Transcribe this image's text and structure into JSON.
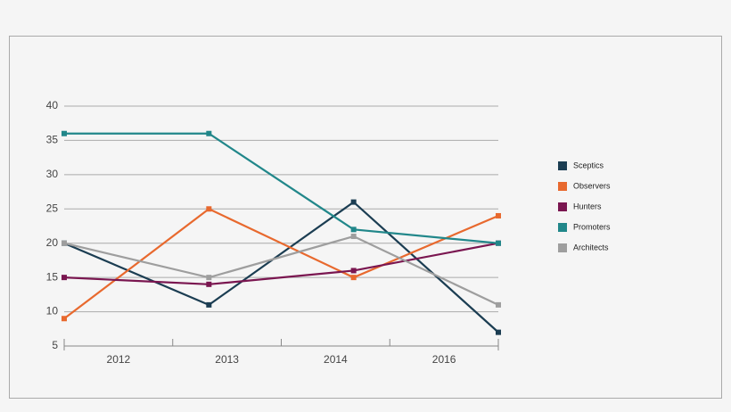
{
  "chart_data": {
    "type": "line",
    "categories": [
      "2012",
      "2013",
      "2014",
      "2016"
    ],
    "series": [
      {
        "name": "Sceptics",
        "color": "#1b3d52",
        "values": [
          20,
          11,
          26,
          7
        ]
      },
      {
        "name": "Observers",
        "color": "#e8692e",
        "values": [
          9,
          25,
          15,
          24
        ]
      },
      {
        "name": "Hunters",
        "color": "#7a1650",
        "values": [
          15,
          14,
          16,
          20
        ]
      },
      {
        "name": "Promoters",
        "color": "#21878a",
        "values": [
          36,
          36,
          22,
          20
        ]
      },
      {
        "name": "Architects",
        "color": "#9e9e9e",
        "values": [
          20,
          15,
          21,
          11
        ]
      }
    ],
    "ylim": [
      5,
      40
    ],
    "yticks": [
      5,
      10,
      15,
      20,
      25,
      30,
      35,
      40
    ],
    "grid": true
  }
}
